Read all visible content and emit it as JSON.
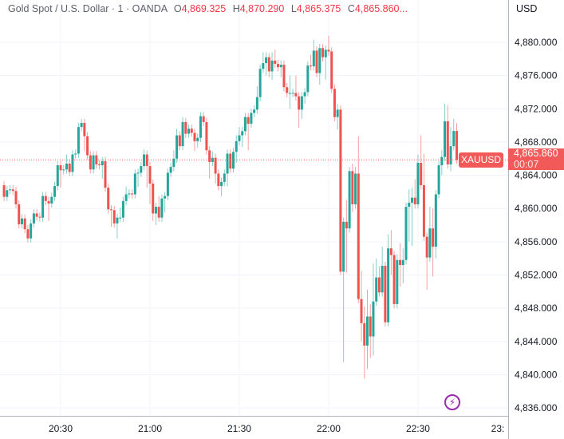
{
  "header": {
    "title": "Gold Spot / U.S. Dollar · 1 · OANDA",
    "open_label": "O",
    "open": "4,869.325",
    "high_label": "H",
    "high": "4,870.290",
    "low_label": "L",
    "low": "4,865.375",
    "close_label": "C",
    "close": "4,865.860..."
  },
  "currency": "USD",
  "price_tag": {
    "symbol": "XAUUSD",
    "price": "4,865.860",
    "countdown": "00:07"
  },
  "icons": {
    "alert": "lightning-bolt-icon"
  },
  "colors": {
    "up": "#26a69a",
    "down": "#ef5350",
    "price_line": "#f25a5a",
    "alert": "#9c27b0"
  },
  "chart_data": {
    "type": "candlestick",
    "interval": "1",
    "grid": true,
    "ylim": [
      4834,
      4882
    ],
    "y_ticks": [
      "4,836.000",
      "4,840.000",
      "4,844.000",
      "4,848.000",
      "4,852.000",
      "4,856.000",
      "4,860.000",
      "4,864.000",
      "4,868.000",
      "4,872.000",
      "4,876.000",
      "4,880.000"
    ],
    "x_ticks": [
      "20:30",
      "21:00",
      "21:30",
      "22:00",
      "22:30",
      "23:"
    ],
    "last_price": 4865.86,
    "candles_columns": [
      "time",
      "open",
      "high",
      "low",
      "close"
    ],
    "candles": [
      [
        "20:11",
        4862.8,
        4863.3,
        4860.9,
        4861.4
      ],
      [
        "20:12",
        4861.4,
        4862.7,
        4860.9,
        4862.2
      ],
      [
        "20:13",
        4862.2,
        4862.8,
        4861.7,
        4862.3
      ],
      [
        "20:14",
        4862.3,
        4862.8,
        4861.6,
        4862.1
      ],
      [
        "20:15",
        4862.1,
        4862.6,
        4860.0,
        4860.5
      ],
      [
        "20:16",
        4860.5,
        4861.0,
        4857.6,
        4858.1
      ],
      [
        "20:17",
        4858.1,
        4859.3,
        4857.6,
        4858.8
      ],
      [
        "20:18",
        4858.8,
        4859.3,
        4857.0,
        4857.5
      ],
      [
        "20:19",
        4857.5,
        4858.0,
        4855.9,
        4856.4
      ],
      [
        "20:20",
        4856.4,
        4858.7,
        4855.9,
        4858.2
      ],
      [
        "20:21",
        4858.2,
        4859.9,
        4857.7,
        4859.4
      ],
      [
        "20:22",
        4859.4,
        4859.9,
        4858.5,
        4859.0
      ],
      [
        "20:23",
        4859.0,
        4859.5,
        4858.4,
        4858.9
      ],
      [
        "20:24",
        4858.9,
        4862.0,
        4858.4,
        4861.5
      ],
      [
        "20:25",
        4861.5,
        4862.0,
        4860.4,
        4860.9
      ],
      [
        "20:26",
        4860.9,
        4861.4,
        4858.5,
        4860.6
      ],
      [
        "20:27",
        4860.6,
        4861.9,
        4860.1,
        4861.4
      ],
      [
        "20:28",
        4861.4,
        4863.2,
        4860.9,
        4862.7
      ],
      [
        "20:29",
        4862.7,
        4865.7,
        4862.2,
        4865.2
      ],
      [
        "20:30",
        4865.2,
        4865.7,
        4862.5,
        4864.6
      ],
      [
        "20:31",
        4864.6,
        4865.2,
        4864.1,
        4864.7
      ],
      [
        "20:32",
        4864.7,
        4866.5,
        4864.2,
        4865.4
      ],
      [
        "20:33",
        4865.4,
        4865.9,
        4863.9,
        4864.4
      ],
      [
        "20:34",
        4864.4,
        4867.0,
        4863.9,
        4866.5
      ],
      [
        "20:35",
        4866.5,
        4867.1,
        4866.0,
        4866.6
      ],
      [
        "20:36",
        4866.6,
        4870.3,
        4866.1,
        4869.8
      ],
      [
        "20:37",
        4869.8,
        4870.8,
        4869.3,
        4870.3
      ],
      [
        "20:38",
        4870.3,
        4870.8,
        4866.9,
        4868.7
      ],
      [
        "20:39",
        4868.7,
        4869.2,
        4865.9,
        4866.4
      ],
      [
        "20:40",
        4866.4,
        4866.9,
        4864.2,
        4864.7
      ],
      [
        "20:41",
        4864.7,
        4866.9,
        4864.2,
        4866.4
      ],
      [
        "20:42",
        4866.4,
        4866.9,
        4864.8,
        4865.3
      ],
      [
        "20:43",
        4865.3,
        4865.8,
        4864.7,
        4865.2
      ],
      [
        "20:44",
        4865.2,
        4866.2,
        4863.6,
        4865.7
      ],
      [
        "20:45",
        4865.7,
        4866.2,
        4862.0,
        4862.5
      ],
      [
        "20:46",
        4862.5,
        4863.0,
        4859.4,
        4859.9
      ],
      [
        "20:47",
        4859.9,
        4860.4,
        4857.8,
        4859.8
      ],
      [
        "20:48",
        4859.8,
        4860.3,
        4857.7,
        4858.2
      ],
      [
        "20:49",
        4858.2,
        4859.4,
        4856.4,
        4858.9
      ],
      [
        "20:50",
        4858.9,
        4860.1,
        4858.4,
        4858.9
      ],
      [
        "20:51",
        4858.9,
        4861.4,
        4858.4,
        4860.9
      ],
      [
        "20:52",
        4860.9,
        4862.6,
        4860.4,
        4861.7
      ],
      [
        "20:53",
        4861.7,
        4862.3,
        4861.2,
        4861.8
      ],
      [
        "20:54",
        4861.8,
        4862.3,
        4861.2,
        4861.7
      ],
      [
        "20:55",
        4861.7,
        4864.7,
        4861.2,
        4864.2
      ],
      [
        "20:56",
        4864.2,
        4864.8,
        4862.6,
        4864.3
      ],
      [
        "20:57",
        4864.3,
        4865.6,
        4863.8,
        4865.1
      ],
      [
        "20:58",
        4865.1,
        4867.1,
        4864.6,
        4866.5
      ],
      [
        "20:59",
        4866.5,
        4867.0,
        4862.5,
        4865.1
      ],
      [
        "21:00",
        4865.1,
        4865.6,
        4860.5,
        4863.0
      ],
      [
        "21:01",
        4863.0,
        4863.5,
        4858.5,
        4859.4
      ],
      [
        "21:02",
        4859.4,
        4860.7,
        4858.0,
        4860.2
      ],
      [
        "21:03",
        4860.2,
        4861.5,
        4858.4,
        4858.9
      ],
      [
        "21:04",
        4858.9,
        4861.7,
        4858.4,
        4861.2
      ],
      [
        "21:05",
        4861.2,
        4862.0,
        4859.5,
        4861.5
      ],
      [
        "21:06",
        4861.5,
        4864.8,
        4861.0,
        4864.3
      ],
      [
        "21:07",
        4864.3,
        4865.5,
        4863.8,
        4865.0
      ],
      [
        "21:08",
        4865.0,
        4867.0,
        4864.5,
        4866.0
      ],
      [
        "21:09",
        4866.0,
        4869.6,
        4865.5,
        4868.8
      ],
      [
        "21:10",
        4868.8,
        4869.3,
        4867.0,
        4867.5
      ],
      [
        "21:11",
        4867.5,
        4871.0,
        4867.0,
        4870.4
      ],
      [
        "21:12",
        4870.4,
        4870.9,
        4868.5,
        4869.0
      ],
      [
        "21:13",
        4869.0,
        4870.1,
        4868.5,
        4869.6
      ],
      [
        "21:14",
        4869.6,
        4870.1,
        4868.6,
        4869.1
      ],
      [
        "21:15",
        4869.1,
        4869.6,
        4866.9,
        4868.1
      ],
      [
        "21:16",
        4868.1,
        4869.0,
        4867.3,
        4868.5
      ],
      [
        "21:17",
        4868.5,
        4871.6,
        4868.0,
        4871.1
      ],
      [
        "21:18",
        4871.1,
        4871.6,
        4869.9,
        4870.4
      ],
      [
        "21:19",
        4870.4,
        4870.9,
        4866.5,
        4867.0
      ],
      [
        "21:20",
        4867.0,
        4867.5,
        4863.6,
        4865.6
      ],
      [
        "21:21",
        4865.6,
        4866.9,
        4865.1,
        4866.1
      ],
      [
        "21:22",
        4866.1,
        4866.6,
        4863.0,
        4864.2
      ],
      [
        "21:23",
        4864.2,
        4864.7,
        4862.2,
        4862.7
      ],
      [
        "21:24",
        4862.7,
        4863.7,
        4861.5,
        4863.2
      ],
      [
        "21:25",
        4863.2,
        4864.7,
        4862.7,
        4864.2
      ],
      [
        "21:26",
        4864.2,
        4867.1,
        4862.7,
        4866.6
      ],
      [
        "21:27",
        4866.6,
        4867.1,
        4864.3,
        4864.8
      ],
      [
        "21:28",
        4864.8,
        4867.3,
        4864.3,
        4866.8
      ],
      [
        "21:29",
        4866.8,
        4868.8,
        4865.5,
        4868.1
      ],
      [
        "21:30",
        4868.1,
        4869.8,
        4867.6,
        4868.8
      ],
      [
        "21:31",
        4868.8,
        4869.8,
        4867.4,
        4869.3
      ],
      [
        "21:32",
        4869.3,
        4871.5,
        4868.8,
        4871.0
      ],
      [
        "21:33",
        4871.0,
        4871.5,
        4867.0,
        4870.2
      ],
      [
        "21:34",
        4870.2,
        4872.0,
        4869.7,
        4871.5
      ],
      [
        "21:35",
        4871.5,
        4872.4,
        4871.0,
        4871.9
      ],
      [
        "21:36",
        4871.9,
        4874.7,
        4871.4,
        4873.4
      ],
      [
        "21:37",
        4873.4,
        4877.3,
        4872.9,
        4876.8
      ],
      [
        "21:38",
        4876.8,
        4878.8,
        4876.3,
        4877.5
      ],
      [
        "21:39",
        4877.5,
        4878.8,
        4876.0,
        4878.2
      ],
      [
        "21:40",
        4878.2,
        4878.7,
        4875.8,
        4876.5
      ],
      [
        "21:41",
        4876.5,
        4878.8,
        4875.5,
        4877.8
      ],
      [
        "21:42",
        4877.8,
        4879.1,
        4876.9,
        4877.4
      ],
      [
        "21:43",
        4877.4,
        4877.9,
        4876.5,
        4877.0
      ],
      [
        "21:44",
        4877.0,
        4877.8,
        4875.8,
        4877.3
      ],
      [
        "21:45",
        4877.3,
        4877.8,
        4874.1,
        4874.6
      ],
      [
        "21:46",
        4874.6,
        4875.1,
        4873.4,
        4873.9
      ],
      [
        "21:47",
        4873.9,
        4876.0,
        4872.0,
        4873.9
      ],
      [
        "21:48",
        4873.9,
        4874.4,
        4873.4,
        4873.9
      ],
      [
        "21:49",
        4873.9,
        4876.0,
        4873.0,
        4873.5
      ],
      [
        "21:50",
        4873.5,
        4874.0,
        4869.7,
        4871.9
      ],
      [
        "21:51",
        4871.9,
        4874.0,
        4870.8,
        4873.5
      ],
      [
        "21:52",
        4873.5,
        4874.5,
        4872.6,
        4874.0
      ],
      [
        "21:53",
        4874.0,
        4877.7,
        4873.5,
        4877.2
      ],
      [
        "21:54",
        4877.2,
        4878.5,
        4876.6,
        4877.1
      ],
      [
        "21:55",
        4877.1,
        4880.3,
        4876.6,
        4879.0
      ],
      [
        "21:56",
        4879.0,
        4879.5,
        4875.8,
        4876.3
      ],
      [
        "21:57",
        4876.3,
        4879.8,
        4874.9,
        4879.3
      ],
      [
        "21:58",
        4879.3,
        4879.8,
        4877.7,
        4878.2
      ],
      [
        "21:59",
        4878.2,
        4879.6,
        4875.5,
        4879.1
      ],
      [
        "22:00",
        4879.1,
        4880.8,
        4878.4,
        4878.9
      ],
      [
        "22:01",
        4878.9,
        4879.4,
        4873.9,
        4874.4
      ],
      [
        "22:02",
        4874.4,
        4874.9,
        4870.5,
        4871.0
      ],
      [
        "22:03",
        4871.0,
        4872.6,
        4869.5,
        4871.9
      ],
      [
        "22:04",
        4871.9,
        4872.4,
        4852.0,
        4852.4
      ],
      [
        "22:05",
        4852.4,
        4858.9,
        4841.5,
        4858.4
      ],
      [
        "22:06",
        4858.4,
        4861.0,
        4852.3,
        4857.6
      ],
      [
        "22:07",
        4857.6,
        4865.0,
        4857.1,
        4864.5
      ],
      [
        "22:08",
        4864.5,
        4865.4,
        4859.6,
        4860.5
      ],
      [
        "22:09",
        4860.5,
        4865.0,
        4860.0,
        4864.2
      ],
      [
        "22:10",
        4864.2,
        4868.7,
        4848.6,
        4849.1
      ],
      [
        "22:11",
        4849.1,
        4852.5,
        4844.0,
        4846.2
      ],
      [
        "22:12",
        4846.2,
        4848.2,
        4839.5,
        4843.5
      ],
      [
        "22:13",
        4843.5,
        4850.2,
        4840.7,
        4847.0
      ],
      [
        "22:14",
        4847.0,
        4848.5,
        4842.0,
        4844.6
      ],
      [
        "22:15",
        4844.6,
        4853.4,
        4842.3,
        4848.8
      ],
      [
        "22:16",
        4848.8,
        4854.0,
        4848.3,
        4851.7
      ],
      [
        "22:17",
        4851.7,
        4853.0,
        4849.4,
        4849.9
      ],
      [
        "22:18",
        4849.9,
        4855.4,
        4849.4,
        4853.1
      ],
      [
        "22:19",
        4853.1,
        4853.6,
        4845.8,
        4846.3
      ],
      [
        "22:20",
        4846.3,
        4856.9,
        4845.8,
        4855.2
      ],
      [
        "22:21",
        4855.2,
        4857.4,
        4852.0,
        4854.4
      ],
      [
        "22:22",
        4854.4,
        4854.9,
        4848.0,
        4848.5
      ],
      [
        "22:23",
        4848.5,
        4854.5,
        4848.0,
        4853.8
      ],
      [
        "22:24",
        4853.8,
        4855.8,
        4850.6,
        4853.2
      ],
      [
        "22:25",
        4853.2,
        4855.2,
        4851.0,
        4853.8
      ],
      [
        "22:26",
        4853.8,
        4860.7,
        4853.3,
        4860.2
      ],
      [
        "22:27",
        4860.2,
        4862.3,
        4856.0,
        4860.7
      ],
      [
        "22:28",
        4860.7,
        4862.5,
        4855.5,
        4861.3
      ],
      [
        "22:29",
        4861.3,
        4863.5,
        4860.0,
        4860.5
      ],
      [
        "22:30",
        4860.5,
        4866.5,
        4860.0,
        4865.5
      ],
      [
        "22:31",
        4865.5,
        4868.8,
        4862.3,
        4862.8
      ],
      [
        "22:32",
        4862.8,
        4866.6,
        4856.1,
        4856.6
      ],
      [
        "22:33",
        4856.6,
        4857.1,
        4850.2,
        4854.1
      ],
      [
        "22:34",
        4854.1,
        4860.2,
        4853.6,
        4857.6
      ],
      [
        "22:35",
        4857.6,
        4860.0,
        4851.8,
        4855.4
      ],
      [
        "22:36",
        4855.4,
        4862.2,
        4854.0,
        4861.7
      ],
      [
        "22:37",
        4861.7,
        4865.7,
        4861.2,
        4865.2
      ],
      [
        "22:38",
        4865.2,
        4867.0,
        4864.0,
        4866.2
      ],
      [
        "22:39",
        4866.2,
        4872.6,
        4865.7,
        4870.5
      ],
      [
        "22:40",
        4870.5,
        4872.4,
        4864.8,
        4865.3
      ],
      [
        "22:41",
        4865.3,
        4869.8,
        4864.5,
        4867.5
      ],
      [
        "22:42",
        4867.5,
        4870.8,
        4867.0,
        4869.325
      ],
      [
        "22:43",
        4869.325,
        4870.29,
        4865.375,
        4865.86
      ]
    ]
  }
}
